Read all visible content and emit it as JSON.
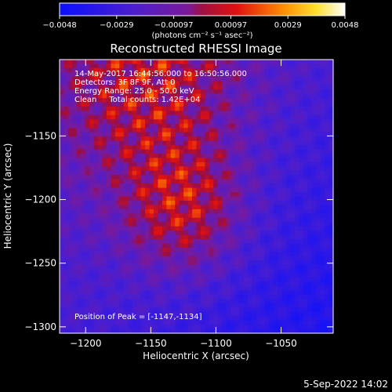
{
  "colorbar": {
    "ticks": [
      "-0.0048",
      "-0.0029",
      "-0.00097",
      "0.00097",
      "0.0029",
      "0.0048"
    ],
    "unit_label": "(photons cm⁻² s⁻¹ asec⁻²)"
  },
  "footer": {
    "date": "5-Sep-2022 14:02"
  },
  "chart_data": {
    "type": "heatmap",
    "title": "Reconstructed RHESSI Image",
    "xlabel": "Heliocentric X (arcsec)",
    "ylabel": "Heliocentric Y (arcsec)",
    "xlim": [
      -1220,
      -1010
    ],
    "ylim": [
      -1305,
      -1090
    ],
    "xticks": [
      -1200,
      -1150,
      -1100,
      -1050
    ],
    "yticks": [
      -1150,
      -1200,
      -1250,
      -1300
    ],
    "xtick_labels": [
      "−1200",
      "−1150",
      "−1100",
      "−1050"
    ],
    "ytick_labels": [
      "−1150",
      "−1200",
      "−1250",
      "−1300"
    ],
    "zlim": [
      -0.0048,
      0.0048
    ],
    "colormap": "blue-purple-red-yellow-white",
    "annotations": [
      "14-May-2017 16:44:56.000 to 16:50:56.000",
      "Detectors: 3F 8F 9F, Att 0",
      "Energy Range: 25.0 - 50.0 keV",
      "Clean     Total counts: 1.42E+04"
    ],
    "peak_label": "Position of Peak = [-1147,-1134]",
    "peak": [
      -1147,
      -1134
    ]
  }
}
